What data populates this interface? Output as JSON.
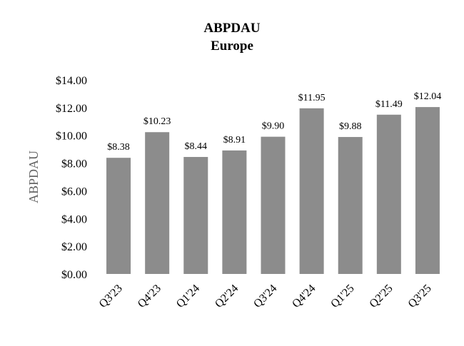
{
  "chart_data": {
    "type": "bar",
    "title": "ABPDAU",
    "subtitle": "Europe",
    "xlabel": "",
    "ylabel": "ABPDAU",
    "categories": [
      "Q3'23",
      "Q4'23",
      "Q1'24",
      "Q2'24",
      "Q3'24",
      "Q4'24",
      "Q1'25",
      "Q2'25",
      "Q3'25"
    ],
    "values": [
      8.38,
      10.23,
      8.44,
      8.91,
      9.9,
      11.95,
      9.88,
      11.49,
      12.04
    ],
    "value_labels": [
      "$8.38",
      "$10.23",
      "$8.44",
      "$8.91",
      "$9.90",
      "$11.95",
      "$9.88",
      "$11.49",
      "$12.04"
    ],
    "ylim": [
      0,
      14
    ],
    "yticks": [
      0,
      2,
      4,
      6,
      8,
      10,
      12,
      14
    ],
    "ytick_labels": [
      "$0.00",
      "$2.00",
      "$4.00",
      "$6.00",
      "$8.00",
      "$10.00",
      "$12.00",
      "$14.00"
    ],
    "grid": false,
    "legend": "none",
    "bar_color": "#8c8c8c"
  }
}
